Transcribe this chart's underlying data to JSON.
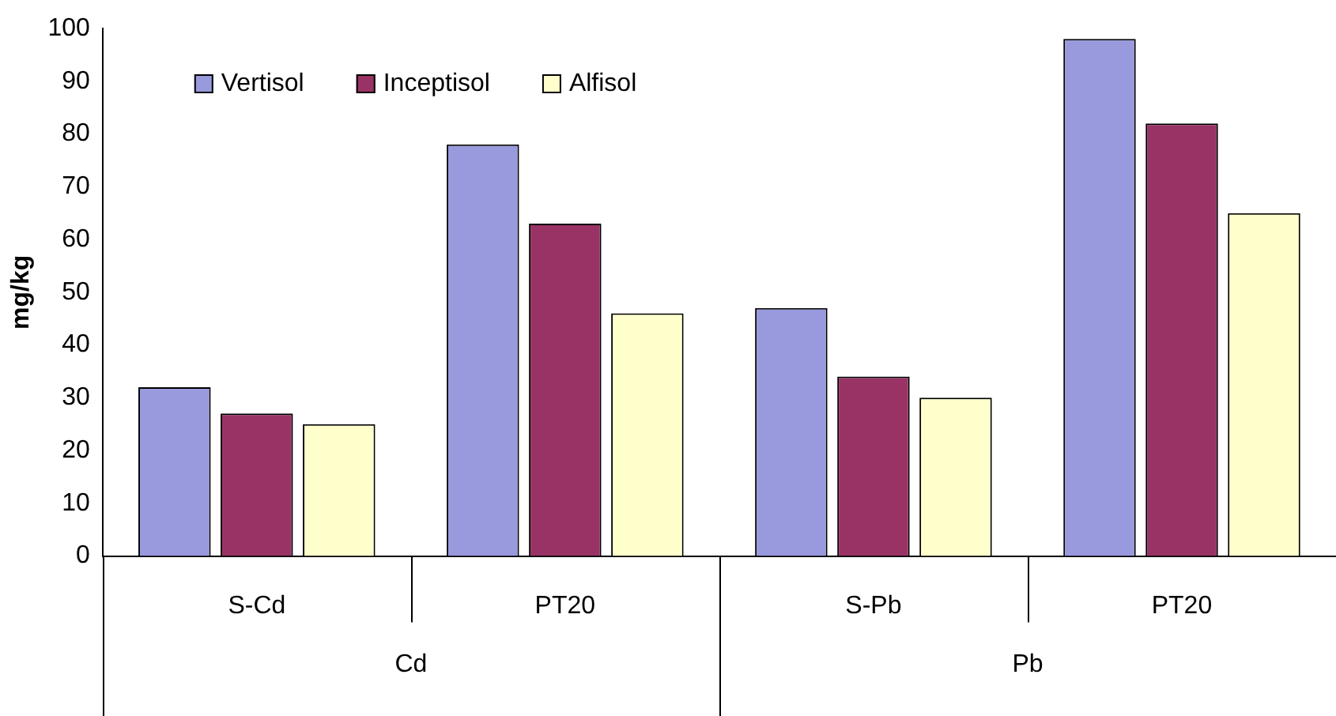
{
  "chart_data": {
    "type": "bar",
    "ylabel": "mg/kg",
    "categories": [
      "S-Cd",
      "PT20",
      "S-Pb",
      "PT20"
    ],
    "series": [
      {
        "name": "Vertisol",
        "color": "#9999dd",
        "values": [
          32,
          78,
          47,
          98
        ]
      },
      {
        "name": "Inceptisol",
        "color": "#993366",
        "values": [
          27,
          63,
          34,
          82
        ]
      },
      {
        "name": "Alfisol",
        "color": "#ffffcc",
        "values": [
          25,
          46,
          30,
          65
        ]
      }
    ],
    "annotations": [
      "Cd",
      "Pb"
    ],
    "ylim": [
      0,
      100
    ],
    "yticks": [
      0,
      10,
      20,
      30,
      40,
      50,
      60,
      70,
      80,
      90,
      100
    ],
    "grid": false,
    "legend": "top left"
  }
}
